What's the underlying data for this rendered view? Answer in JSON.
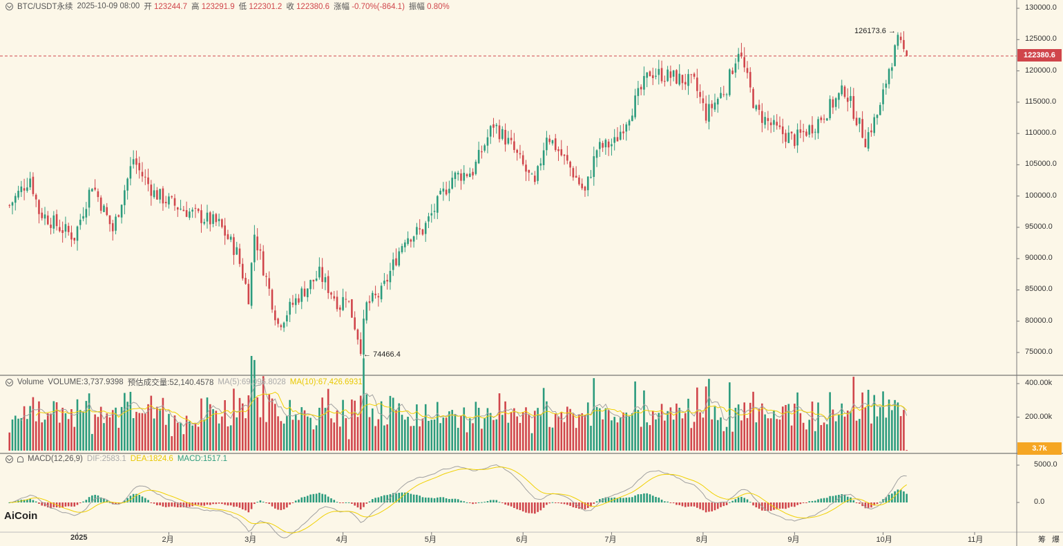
{
  "header": {
    "symbol": "BTC/USDT永续",
    "datetime": "2025-10-09 08:00",
    "open_label": "开",
    "open": "123244.7",
    "high_label": "高",
    "high": "123291.9",
    "low_label": "低",
    "low": "122301.2",
    "close_label": "收",
    "close": "122380.6",
    "change_label": "涨幅",
    "change": "-0.70%(-864.1)",
    "amp_label": "振幅",
    "amp": "0.80%"
  },
  "volume_header": {
    "name": "Volume",
    "volume": "VOLUME:3,737.9398",
    "est": "预估成交量:52,140.4578",
    "ma5": "MA(5):69,096.8028",
    "ma10": "MA(10):67,426.6931"
  },
  "macd_header": {
    "name": "MACD(12,26,9)",
    "dif": "DIF:2583.1",
    "dea": "DEA:1824.6",
    "macd": "MACD:1517.1"
  },
  "price_axis": [
    "130000.0",
    "125000.0",
    "120000.0",
    "115000.0",
    "110000.0",
    "105000.0",
    "100000.0",
    "95000.0",
    "90000.0",
    "85000.0",
    "80000.0",
    "75000.0"
  ],
  "volume_axis": [
    "400.00k",
    "200.00k"
  ],
  "volume_tag": "3.7k",
  "macd_axis": [
    "5000.0",
    "0.0"
  ],
  "current_price": "122380.6",
  "annotations": {
    "high": "126173.6",
    "low": "74466.4"
  },
  "months": [
    "2025",
    "2月",
    "3月",
    "4月",
    "5月",
    "6月",
    "7月",
    "8月",
    "9月",
    "10月",
    "11月"
  ],
  "brand": "AiCoin",
  "corner_labels": [
    "筹",
    "爆"
  ],
  "colors": {
    "up": "#2b9b7d",
    "down": "#d0454b",
    "ma5": "#a0a0a0",
    "ma10": "#f0d000"
  },
  "chart_data": {
    "type": "candlestick",
    "interval": "daily",
    "y_range": [
      72000,
      132000
    ],
    "current": 122380.6,
    "high_point": {
      "value": 126173.6,
      "date": "2025-10-06"
    },
    "low_point": {
      "value": 74466.4,
      "date": "2025-04-07"
    },
    "x_ticks": [
      "2025-01-01",
      "2025-02-01",
      "2025-03-01",
      "2025-04-01",
      "2025-05-01",
      "2025-06-01",
      "2025-07-01",
      "2025-08-01",
      "2025-09-01",
      "2025-10-01",
      "2025-11-01"
    ],
    "close_path": [
      [
        "2024-12-09",
        98500
      ],
      [
        "2024-12-16",
        103000
      ],
      [
        "2024-12-19",
        97500
      ],
      [
        "2024-12-26",
        95000
      ],
      [
        "2024-12-31",
        93500
      ],
      [
        "2025-01-06",
        102000
      ],
      [
        "2025-01-13",
        94500
      ],
      [
        "2025-01-20",
        106000
      ],
      [
        "2025-01-22",
        104000
      ],
      [
        "2025-01-27",
        100500
      ],
      [
        "2025-02-03",
        98500
      ],
      [
        "2025-02-10",
        97000
      ],
      [
        "2025-02-18",
        95500
      ],
      [
        "2025-02-24",
        91000
      ],
      [
        "2025-02-28",
        84000
      ],
      [
        "2025-03-02",
        94000
      ],
      [
        "2025-03-10",
        79500
      ],
      [
        "2025-03-17",
        84000
      ],
      [
        "2025-03-24",
        87500
      ],
      [
        "2025-03-31",
        82500
      ],
      [
        "2025-04-02",
        84500
      ],
      [
        "2025-04-07",
        76000
      ],
      [
        "2025-04-09",
        82500
      ],
      [
        "2025-04-14",
        84500
      ],
      [
        "2025-04-22",
        93500
      ],
      [
        "2025-04-28",
        94500
      ],
      [
        "2025-05-08",
        103000
      ],
      [
        "2025-05-15",
        104000
      ],
      [
        "2025-05-22",
        111500
      ],
      [
        "2025-05-28",
        108000
      ],
      [
        "2025-06-05",
        101500
      ],
      [
        "2025-06-09",
        110000
      ],
      [
        "2025-06-17",
        104500
      ],
      [
        "2025-06-22",
        100500
      ],
      [
        "2025-06-26",
        107500
      ],
      [
        "2025-07-02",
        108500
      ],
      [
        "2025-07-10",
        116000
      ],
      [
        "2025-07-14",
        119800
      ],
      [
        "2025-07-22",
        119000
      ],
      [
        "2025-07-29",
        118000
      ],
      [
        "2025-08-02",
        113000
      ],
      [
        "2025-08-09",
        117500
      ],
      [
        "2025-08-13",
        123500
      ],
      [
        "2025-08-19",
        113500
      ],
      [
        "2025-08-26",
        110500
      ],
      [
        "2025-09-01",
        109000
      ],
      [
        "2025-09-08",
        111500
      ],
      [
        "2025-09-18",
        117000
      ],
      [
        "2025-09-25",
        109000
      ],
      [
        "2025-09-30",
        114000
      ],
      [
        "2025-10-03",
        120500
      ],
      [
        "2025-10-06",
        124500
      ],
      [
        "2025-10-09",
        122380
      ]
    ],
    "volume": {
      "axis_max": 400000,
      "last": 3737.9398,
      "ma5": 69096.8028,
      "ma10": 67426.6931
    },
    "macd": {
      "params": [
        12,
        26,
        9
      ],
      "dif": 2583.1,
      "dea": 1824.6,
      "macd": 1517.1,
      "axis": [
        0,
        5000
      ]
    }
  }
}
